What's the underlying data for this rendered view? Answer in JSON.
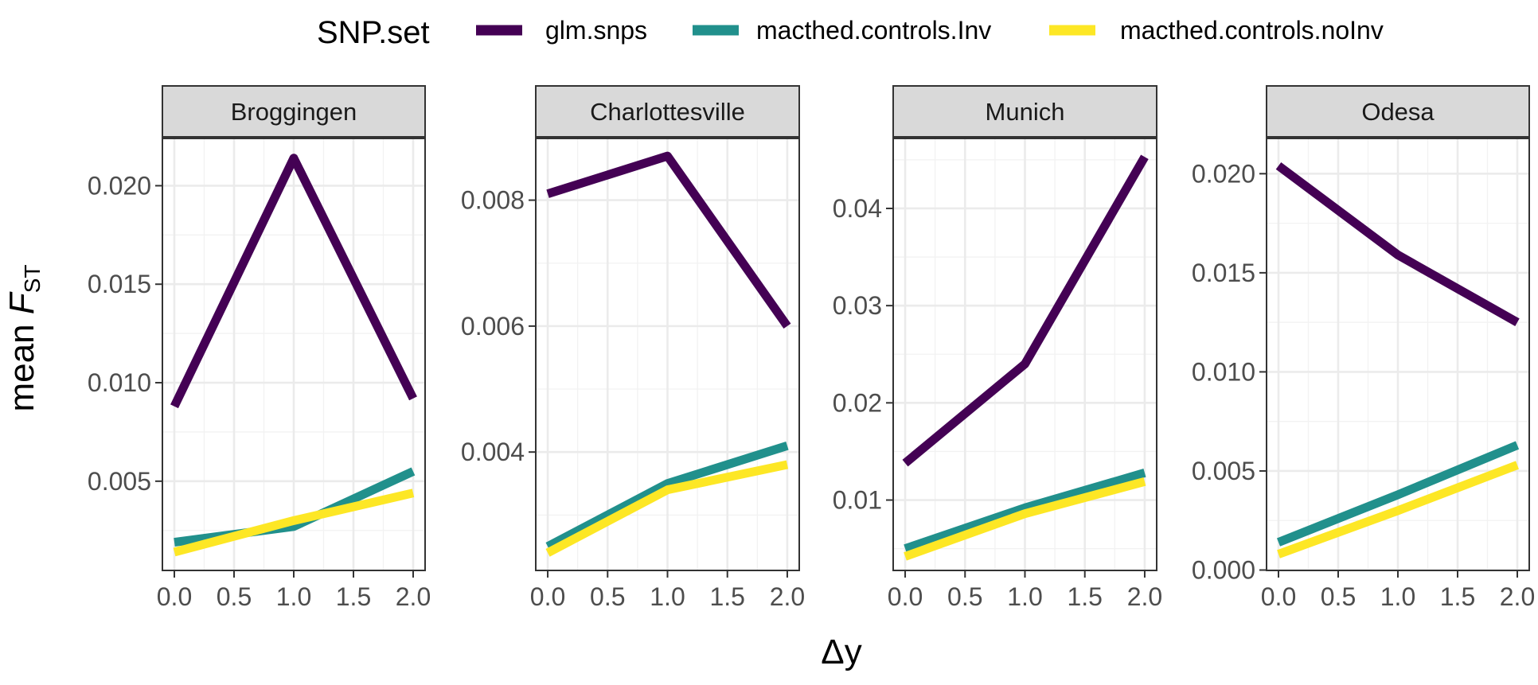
{
  "chart_data": {
    "type": "line",
    "legend": {
      "title": "SNP.set",
      "position": "top",
      "entries": [
        {
          "name": "glm.snps",
          "color": "#440154"
        },
        {
          "name": "macthed.controls.Inv",
          "color": "#21908C"
        },
        {
          "name": "macthed.controls.noInv",
          "color": "#FDE725"
        }
      ]
    },
    "xlabel": "Δy",
    "ylabel_main": "mean ",
    "ylabel_italic": "F",
    "ylabel_subscript": "ST",
    "grid": true,
    "x_ticks": [
      0.0,
      0.5,
      1.0,
      1.5,
      2.0
    ],
    "x_tick_labels": [
      "0.0",
      "0.5",
      "1.0",
      "1.5",
      "2.0"
    ],
    "x_range": [
      -0.1,
      2.1
    ],
    "panels": [
      {
        "title": "Broggingen",
        "ylim": [
          0.00047,
          0.0224
        ],
        "y_ticks": [
          0.005,
          0.01,
          0.015,
          0.02
        ],
        "y_tick_labels": [
          "0.005",
          "0.010",
          "0.015",
          "0.020"
        ],
        "series": [
          {
            "name": "glm.snps",
            "x": [
              0,
              1,
              2
            ],
            "values": [
              0.0088,
              0.0214,
              0.0092
            ]
          },
          {
            "name": "macthed.controls.Inv",
            "x": [
              0,
              1,
              2
            ],
            "values": [
              0.0019,
              0.0027,
              0.0055
            ]
          },
          {
            "name": "macthed.controls.noInv",
            "x": [
              0,
              1,
              2
            ],
            "values": [
              0.0014,
              0.003,
              0.0044
            ]
          }
        ]
      },
      {
        "title": "Charlottesville",
        "ylim": [
          0.00212,
          0.00898
        ],
        "y_ticks": [
          0.004,
          0.006,
          0.008
        ],
        "y_tick_labels": [
          "0.004",
          "0.006",
          "0.008"
        ],
        "series": [
          {
            "name": "glm.snps",
            "x": [
              0,
              1,
              2
            ],
            "values": [
              0.0081,
              0.0087,
              0.006
            ]
          },
          {
            "name": "macthed.controls.Inv",
            "x": [
              0,
              1,
              2
            ],
            "values": [
              0.0025,
              0.0035,
              0.0041
            ]
          },
          {
            "name": "macthed.controls.noInv",
            "x": [
              0,
              1,
              2
            ],
            "values": [
              0.0024,
              0.0034,
              0.0038
            ]
          }
        ]
      },
      {
        "title": "Munich",
        "ylim": [
          0.00276,
          0.0472
        ],
        "y_ticks": [
          0.01,
          0.02,
          0.03,
          0.04
        ],
        "y_tick_labels": [
          "0.01",
          "0.02",
          "0.03",
          "0.04"
        ],
        "series": [
          {
            "name": "glm.snps",
            "x": [
              0,
              1,
              2
            ],
            "values": [
              0.0138,
              0.024,
              0.0453
            ]
          },
          {
            "name": "macthed.controls.Inv",
            "x": [
              0,
              1,
              2
            ],
            "values": [
              0.005,
              0.0092,
              0.0128
            ]
          },
          {
            "name": "macthed.controls.noInv",
            "x": [
              0,
              1,
              2
            ],
            "values": [
              0.0042,
              0.0086,
              0.0119
            ]
          }
        ]
      },
      {
        "title": "Odesa",
        "ylim": [
          -2e-05,
          0.02178
        ],
        "y_ticks": [
          0.0,
          0.005,
          0.01,
          0.015,
          0.02
        ],
        "y_tick_labels": [
          "0.000",
          "0.005",
          "0.010",
          "0.015",
          "0.020"
        ],
        "series": [
          {
            "name": "glm.snps",
            "x": [
              0,
              1,
              2
            ],
            "values": [
              0.0204,
              0.0159,
              0.0125
            ]
          },
          {
            "name": "macthed.controls.Inv",
            "x": [
              0,
              1,
              2
            ],
            "values": [
              0.0014,
              0.0038,
              0.0063
            ]
          },
          {
            "name": "macthed.controls.noInv",
            "x": [
              0,
              1,
              2
            ],
            "values": [
              0.0008,
              0.003,
              0.0053
            ]
          }
        ]
      }
    ]
  }
}
